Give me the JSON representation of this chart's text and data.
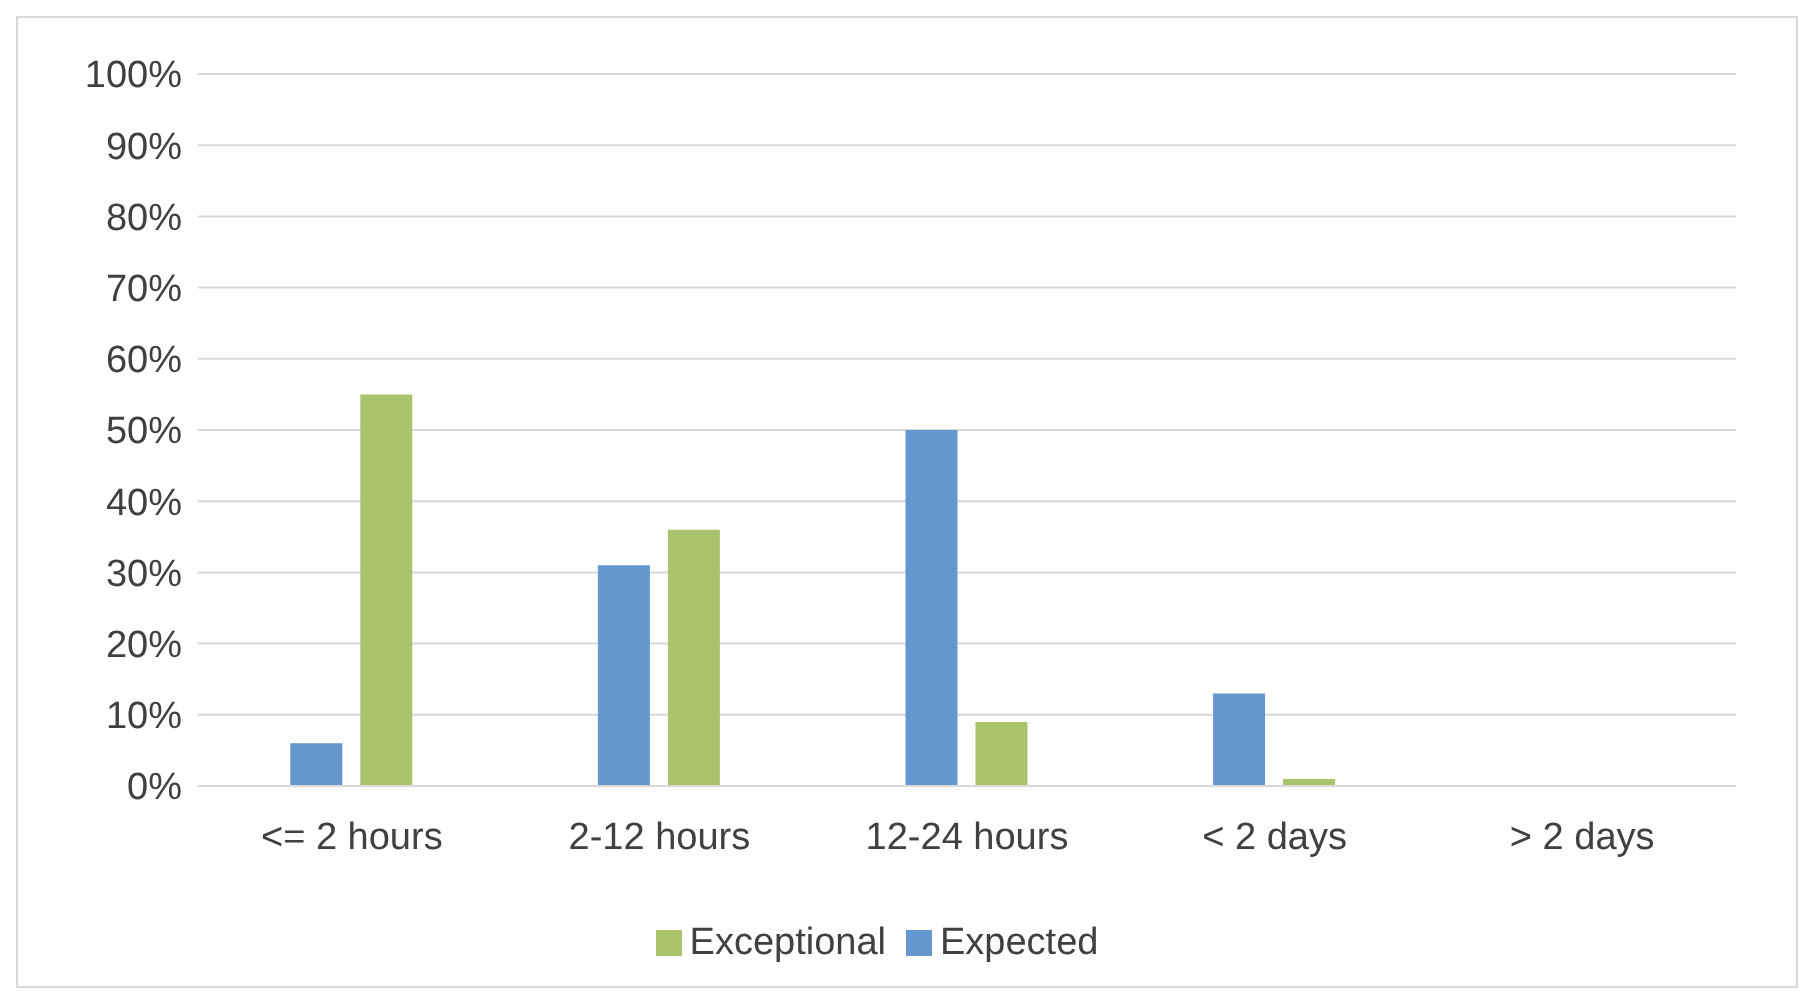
{
  "chart_data": {
    "type": "bar",
    "categories": [
      "<= 2 hours",
      "2-12 hours",
      "12-24 hours",
      "< 2 days",
      "> 2 days"
    ],
    "series": [
      {
        "name": "Expected",
        "color": "#6497cd",
        "values": [
          6,
          31,
          50,
          13,
          0
        ]
      },
      {
        "name": "Exceptional",
        "color": "#a9c46c",
        "values": [
          55,
          36,
          9,
          1,
          0
        ]
      }
    ],
    "ylim": [
      0,
      100
    ],
    "yticks": [
      {
        "value": 0,
        "label": "0%"
      },
      {
        "value": 10,
        "label": "10%"
      },
      {
        "value": 20,
        "label": "20%"
      },
      {
        "value": 30,
        "label": "30%"
      },
      {
        "value": 40,
        "label": "40%"
      },
      {
        "value": 50,
        "label": "50%"
      },
      {
        "value": 60,
        "label": "60%"
      },
      {
        "value": 70,
        "label": "70%"
      },
      {
        "value": 80,
        "label": "80%"
      },
      {
        "value": 90,
        "label": "90%"
      },
      {
        "value": 100,
        "label": "100%"
      }
    ],
    "grid": "y",
    "legend": "bottom"
  }
}
